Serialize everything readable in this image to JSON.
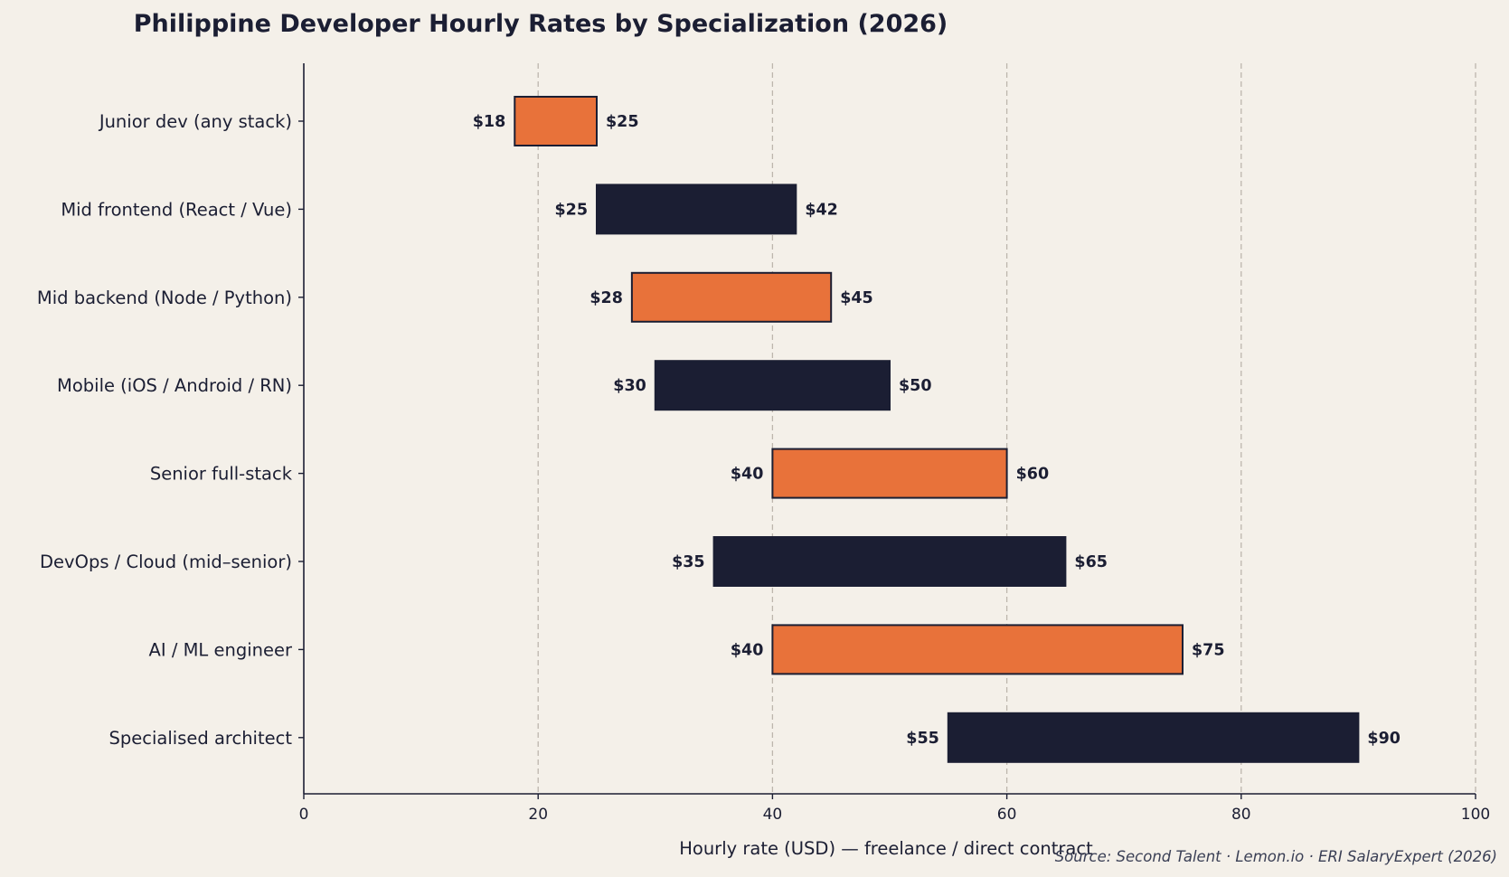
{
  "chart_data": {
    "type": "bar",
    "orientation": "horizontal-range",
    "title": "Philippine Developer Hourly Rates by Specialization (2026)",
    "xlabel": "Hourly rate (USD) — freelance / direct contract",
    "ylabel": "",
    "xlim": [
      0,
      100
    ],
    "xticks": [
      0,
      20,
      40,
      60,
      80,
      100
    ],
    "grid": "x dashed",
    "source": "Source: Second Talent · Lemon.io · ERI SalaryExpert (2026)",
    "colors": {
      "orange": "#e8723a",
      "navy": "#1b1e33",
      "background": "#f4f0e9"
    },
    "categories": [
      "Junior dev (any stack)",
      "Mid frontend (React / Vue)",
      "Mid backend (Node / Python)",
      "Mobile (iOS / Android / RN)",
      "Senior full-stack",
      "DevOps / Cloud (mid–senior)",
      "AI / ML engineer",
      "Specialised architect"
    ],
    "ranges": [
      {
        "low": 18,
        "high": 25,
        "low_label": "$18",
        "high_label": "$25",
        "color": "orange"
      },
      {
        "low": 25,
        "high": 42,
        "low_label": "$25",
        "high_label": "$42",
        "color": "navy"
      },
      {
        "low": 28,
        "high": 45,
        "low_label": "$28",
        "high_label": "$45",
        "color": "orange"
      },
      {
        "low": 30,
        "high": 50,
        "low_label": "$30",
        "high_label": "$50",
        "color": "navy"
      },
      {
        "low": 40,
        "high": 60,
        "low_label": "$40",
        "high_label": "$60",
        "color": "orange"
      },
      {
        "low": 35,
        "high": 65,
        "low_label": "$35",
        "high_label": "$65",
        "color": "navy"
      },
      {
        "low": 40,
        "high": 75,
        "low_label": "$40",
        "high_label": "$75",
        "color": "orange"
      },
      {
        "low": 55,
        "high": 90,
        "low_label": "$55",
        "high_label": "$90",
        "color": "navy"
      }
    ]
  }
}
